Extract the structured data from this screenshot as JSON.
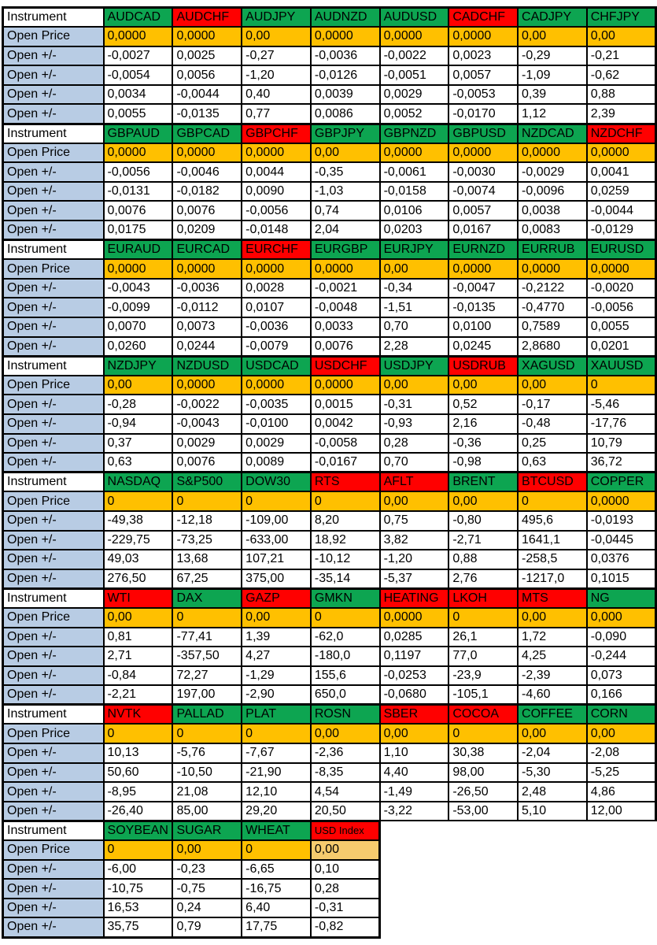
{
  "labels": {
    "instrument": "Instrument",
    "open_price": "Open Price",
    "open_change": "Open +/-"
  },
  "colors": {
    "header_green": "#0DA551",
    "header_red": "#FF0000",
    "price_orange": "#FFC000",
    "price_orange_light": "#F6CB6E",
    "label_blue": "#B8CCE4",
    "border_black": "#000000",
    "text_black": "#000000",
    "background_white": "#FFFFFF"
  },
  "blocks": [
    {
      "columns": [
        {
          "name": "AUDCAD",
          "status": "green"
        },
        {
          "name": "AUDCHF",
          "status": "red"
        },
        {
          "name": "AUDJPY",
          "status": "green"
        },
        {
          "name": "AUDNZD",
          "status": "green"
        },
        {
          "name": "AUDUSD",
          "status": "green"
        },
        {
          "name": "CADCHF",
          "status": "red"
        },
        {
          "name": "CADJPY",
          "status": "green"
        },
        {
          "name": "CHFJPY",
          "status": "green"
        }
      ],
      "open_price": [
        "0,0000",
        "0,0000",
        "0,00",
        "0,0000",
        "0,0000",
        "0,0000",
        "0,00",
        "0,00"
      ],
      "changes": [
        [
          "-0,0027",
          "0,0025",
          "-0,27",
          "-0,0036",
          "-0,0022",
          "0,0023",
          "-0,29",
          "-0,21"
        ],
        [
          "-0,0054",
          "0,0056",
          "-1,20",
          "-0,0126",
          "-0,0051",
          "0,0057",
          "-1,09",
          "-0,62"
        ],
        [
          "0,0034",
          "-0,0044",
          "0,40",
          "0,0039",
          "0,0029",
          "-0,0053",
          "0,39",
          "0,88"
        ],
        [
          "0,0055",
          "-0,0135",
          "0,77",
          "0,0086",
          "0,0052",
          "-0,0170",
          "1,12",
          "2,39"
        ]
      ]
    },
    {
      "columns": [
        {
          "name": "GBPAUD",
          "status": "green"
        },
        {
          "name": "GBPCAD",
          "status": "green"
        },
        {
          "name": "GBPCHF",
          "status": "red"
        },
        {
          "name": "GBPJPY",
          "status": "green"
        },
        {
          "name": "GBPNZD",
          "status": "green"
        },
        {
          "name": "GBPUSD",
          "status": "green"
        },
        {
          "name": "NZDCAD",
          "status": "green"
        },
        {
          "name": "NZDCHF",
          "status": "red"
        }
      ],
      "open_price": [
        "0,0000",
        "0,0000",
        "0,0000",
        "0,00",
        "0,0000",
        "0,0000",
        "0,0000",
        "0,0000"
      ],
      "changes": [
        [
          "-0,0056",
          "-0,0046",
          "0,0044",
          "-0,35",
          "-0,0061",
          "-0,0030",
          "-0,0029",
          "0,0041"
        ],
        [
          "-0,0131",
          "-0,0182",
          "0,0090",
          "-1,03",
          "-0,0158",
          "-0,0074",
          "-0,0096",
          "0,0259"
        ],
        [
          "0,0076",
          "0,0076",
          "-0,0056",
          "0,74",
          "0,0106",
          "0,0057",
          "0,0038",
          "-0,0044"
        ],
        [
          "0,0175",
          "0,0209",
          "-0,0148",
          "2,04",
          "0,0203",
          "0,0167",
          "0,0083",
          "-0,0129"
        ]
      ]
    },
    {
      "columns": [
        {
          "name": "EURAUD",
          "status": "green"
        },
        {
          "name": "EURCAD",
          "status": "green"
        },
        {
          "name": "EURCHF",
          "status": "red"
        },
        {
          "name": "EURGBP",
          "status": "green"
        },
        {
          "name": "EURJPY",
          "status": "green"
        },
        {
          "name": "EURNZD",
          "status": "green"
        },
        {
          "name": "EURRUB",
          "status": "green"
        },
        {
          "name": "EURUSD",
          "status": "green"
        }
      ],
      "open_price": [
        "0,0000",
        "0,0000",
        "0,0000",
        "0,0000",
        "0,00",
        "0,0000",
        "0,0000",
        "0,0000"
      ],
      "changes": [
        [
          "-0,0043",
          "-0,0036",
          "0,0028",
          "-0,0021",
          "-0,34",
          "-0,0047",
          "-0,2122",
          "-0,0020"
        ],
        [
          "-0,0099",
          "-0,0112",
          "0,0107",
          "-0,0048",
          "-1,51",
          "-0,0135",
          "-0,4770",
          "-0,0056"
        ],
        [
          "0,0070",
          "0,0073",
          "-0,0036",
          "0,0033",
          "0,70",
          "0,0100",
          "0,7589",
          "0,0055"
        ],
        [
          "0,0260",
          "0,0244",
          "-0,0079",
          "0,0076",
          "2,28",
          "0,0245",
          "2,8680",
          "0,0201"
        ]
      ]
    },
    {
      "columns": [
        {
          "name": "NZDJPY",
          "status": "green"
        },
        {
          "name": "NZDUSD",
          "status": "green"
        },
        {
          "name": "USDCAD",
          "status": "green"
        },
        {
          "name": "USDCHF",
          "status": "red"
        },
        {
          "name": "USDJPY",
          "status": "green"
        },
        {
          "name": "USDRUB",
          "status": "red"
        },
        {
          "name": "XAGUSD",
          "status": "green"
        },
        {
          "name": "XAUUSD",
          "status": "green"
        }
      ],
      "open_price": [
        "0,00",
        "0,0000",
        "0,0000",
        "0,0000",
        "0,00",
        "0,00",
        "0,00",
        "0"
      ],
      "changes": [
        [
          "-0,28",
          "-0,0022",
          "-0,0035",
          "0,0015",
          "-0,31",
          "0,52",
          "-0,17",
          "-5,46"
        ],
        [
          "-0,94",
          "-0,0043",
          "-0,0100",
          "0,0042",
          "-0,93",
          "2,16",
          "-0,48",
          "-17,76"
        ],
        [
          "0,37",
          "0,0029",
          "0,0029",
          "-0,0058",
          "0,28",
          "-0,36",
          "0,25",
          "10,79"
        ],
        [
          "0,63",
          "0,0076",
          "0,0089",
          "-0,0167",
          "0,70",
          "-0,98",
          "0,63",
          "36,72"
        ]
      ]
    },
    {
      "columns": [
        {
          "name": "NASDAQ",
          "status": "green"
        },
        {
          "name": "S&P500",
          "status": "green"
        },
        {
          "name": "DOW30",
          "status": "green"
        },
        {
          "name": "RTS",
          "status": "red"
        },
        {
          "name": "AFLT",
          "status": "red"
        },
        {
          "name": "BRENT",
          "status": "green"
        },
        {
          "name": "BTCUSD",
          "status": "red"
        },
        {
          "name": "COPPER",
          "status": "green"
        }
      ],
      "open_price": [
        "0",
        "0",
        "0",
        "0",
        "0,00",
        "0,00",
        "0",
        "0,0000"
      ],
      "changes": [
        [
          "-49,38",
          "-12,18",
          "-109,00",
          "8,20",
          "0,75",
          "-0,80",
          "495,6",
          "-0,0193"
        ],
        [
          "-229,75",
          "-73,25",
          "-633,00",
          "18,92",
          "3,82",
          "-2,71",
          "1641,1",
          "-0,0445"
        ],
        [
          "49,03",
          "13,68",
          "107,21",
          "-10,12",
          "-1,20",
          "0,88",
          "-258,5",
          "0,0376"
        ],
        [
          "276,50",
          "67,25",
          "375,00",
          "-35,14",
          "-5,37",
          "2,76",
          "-1217,0",
          "0,1015"
        ]
      ]
    },
    {
      "columns": [
        {
          "name": "WTI",
          "status": "red"
        },
        {
          "name": "DAX",
          "status": "green"
        },
        {
          "name": "GAZP",
          "status": "red"
        },
        {
          "name": "GMKN",
          "status": "green"
        },
        {
          "name": "HEATING",
          "status": "red"
        },
        {
          "name": "LKOH",
          "status": "red"
        },
        {
          "name": "MTS",
          "status": "red"
        },
        {
          "name": "NG",
          "status": "green"
        }
      ],
      "open_price": [
        "0,00",
        "0",
        "0,00",
        "0",
        "0,0000",
        "0",
        "0,00",
        "0,000"
      ],
      "changes": [
        [
          "0,81",
          "-77,41",
          "1,39",
          "-62,0",
          "0,0285",
          "26,1",
          "1,72",
          "-0,090"
        ],
        [
          "2,71",
          "-357,50",
          "4,27",
          "-180,0",
          "0,1197",
          "77,0",
          "4,25",
          "-0,244"
        ],
        [
          "-0,84",
          "72,27",
          "-1,29",
          "155,6",
          "-0,0253",
          "-23,9",
          "-2,39",
          "0,073"
        ],
        [
          "-2,21",
          "197,00",
          "-2,90",
          "650,0",
          "-0,0680",
          "-105,1",
          "-4,60",
          "0,166"
        ]
      ]
    },
    {
      "columns": [
        {
          "name": "NVTK",
          "status": "red"
        },
        {
          "name": "PALLAD",
          "status": "green"
        },
        {
          "name": "PLAT",
          "status": "green"
        },
        {
          "name": "ROSN",
          "status": "green"
        },
        {
          "name": "SBER",
          "status": "red"
        },
        {
          "name": "COCOA",
          "status": "red"
        },
        {
          "name": "COFFEE",
          "status": "green"
        },
        {
          "name": "CORN",
          "status": "green"
        }
      ],
      "open_price": [
        "0",
        "0",
        "0",
        "0,00",
        "0,00",
        "0",
        "0,00",
        "0,00"
      ],
      "changes": [
        [
          "10,13",
          "-5,76",
          "-7,67",
          "-2,36",
          "1,10",
          "30,38",
          "-2,04",
          "-2,08"
        ],
        [
          "50,60",
          "-10,50",
          "-21,90",
          "-8,35",
          "4,40",
          "98,00",
          "-5,30",
          "-5,25"
        ],
        [
          "-8,95",
          "21,08",
          "12,10",
          "4,54",
          "-1,49",
          "-26,50",
          "2,48",
          "4,86"
        ],
        [
          "-26,40",
          "85,00",
          "29,20",
          "20,50",
          "-3,22",
          "-53,00",
          "5,10",
          "12,00"
        ]
      ]
    },
    {
      "columns": [
        {
          "name": "SOYBEAN",
          "status": "green"
        },
        {
          "name": "SUGAR",
          "status": "green"
        },
        {
          "name": "WHEAT",
          "status": "green"
        },
        {
          "name": "USD Index",
          "status": "red",
          "small": true,
          "price_light": true
        }
      ],
      "open_price": [
        "0",
        "0,00",
        "0",
        "0,00"
      ],
      "changes": [
        [
          "-6,00",
          "-0,23",
          "-6,65",
          "0,10"
        ],
        [
          "-10,75",
          "-0,75",
          "-16,75",
          "0,28"
        ],
        [
          "16,53",
          "0,24",
          "6,40",
          "-0,31"
        ],
        [
          "35,75",
          "0,79",
          "17,75",
          "-0,82"
        ]
      ]
    }
  ]
}
